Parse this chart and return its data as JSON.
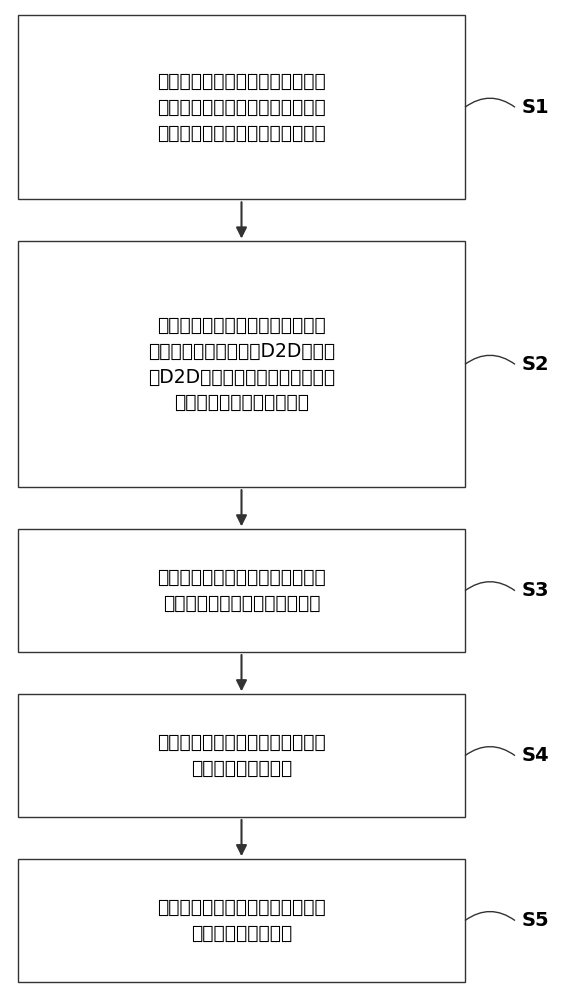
{
  "background_color": "#ffffff",
  "box_color": "#ffffff",
  "box_edge_color": "#333333",
  "text_color": "#000000",
  "arrow_color": "#333333",
  "steps": [
    {
      "label": "S1",
      "lines": [
        "在同一小区中，根据每个蜂窝用户",
        "的最小传输速率要求设定该用户通",
        "信时的信道容量须满足的约束条件"
      ],
      "n_lines": 3
    },
    {
      "label": "S2",
      "lines": [
        "将在所述约束条件下，将一定频谱",
        "资源分配给蜂窝用户和D2D用户，",
        "使D2D用户分配到的频谱资源总量",
        "最大化的问题在数学上表述"
      ],
      "n_lines": 4
    },
    {
      "label": "S3",
      "lines": [
        "将在数学上表述的该问题转化为与",
        "该问题等价的拉格朗日对偶问题"
      ],
      "n_lines": 2
    },
    {
      "label": "S4",
      "lines": [
        "解该拉格朗日对偶问题，得到该问",
        "题在数学上的最优解"
      ],
      "n_lines": 2
    },
    {
      "label": "S5",
      "lines": [
        "解该拉格朗日对偶问题，得到该问",
        "题在数学上的最优解"
      ],
      "n_lines": 2
    }
  ],
  "fig_width": 5.85,
  "fig_height": 10.0,
  "dpi": 100
}
